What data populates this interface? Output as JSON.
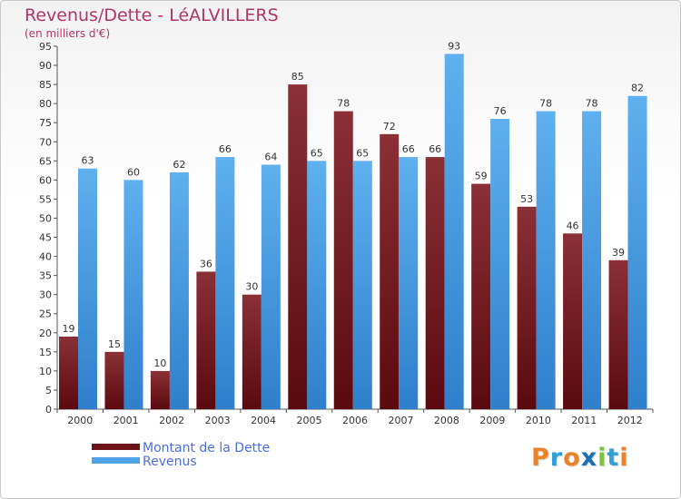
{
  "chart_data": {
    "type": "bar",
    "title": "Revenus/Dette - LéALVILLERS",
    "subtitle": "(en milliers d'€)",
    "categories": [
      "2000",
      "2001",
      "2002",
      "2003",
      "2004",
      "2005",
      "2006",
      "2007",
      "2008",
      "2009",
      "2010",
      "2011",
      "2012"
    ],
    "series": [
      {
        "name": "Montant de la Dette",
        "color": "#6e1318",
        "values": [
          19,
          15,
          10,
          36,
          30,
          85,
          78,
          72,
          66,
          59,
          53,
          46,
          39
        ]
      },
      {
        "name": "Revenus",
        "color": "#4ea3e6",
        "values": [
          63,
          60,
          62,
          66,
          64,
          65,
          65,
          66,
          93,
          76,
          78,
          78,
          82
        ]
      }
    ],
    "ylim": [
      0,
      95
    ],
    "yticks": [
      0,
      5,
      10,
      15,
      20,
      25,
      30,
      35,
      40,
      45,
      50,
      55,
      60,
      65,
      70,
      75,
      80,
      85,
      90,
      95
    ],
    "grid": false,
    "legend_position": "bottom-left"
  },
  "logo": {
    "text": "Proxiti",
    "colors": [
      "#e8832a",
      "#2f9fd8",
      "#e8832a",
      "#1b6fb5",
      "#7cc242",
      "#2f9fd8",
      "#e8832a"
    ]
  }
}
